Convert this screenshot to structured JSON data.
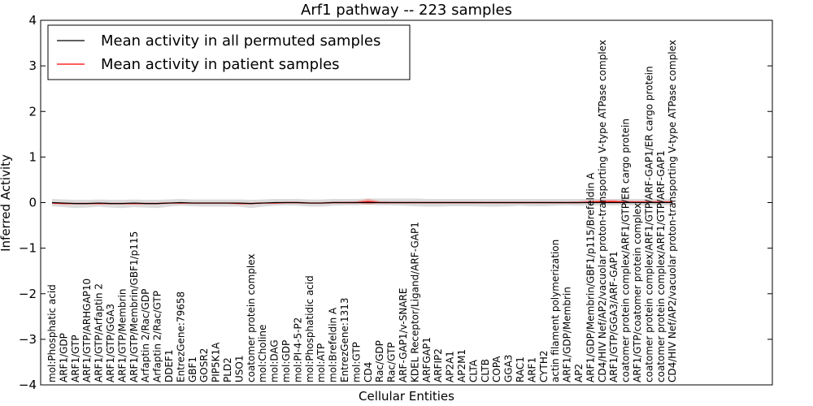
{
  "chart_data": {
    "type": "line",
    "title": "Arf1 pathway -- 223 samples",
    "xlabel": "Cellular Entities",
    "ylabel": "Inferred Activity",
    "ylim": [
      -4,
      4
    ],
    "yticks": [
      "−4",
      "−3",
      "−2",
      "−1",
      "0",
      "1",
      "2",
      "3",
      "4"
    ],
    "grid": false,
    "legend_position": "top-left",
    "categories": [
      "mol:Phosphatic acid",
      "ARF1/GDP",
      "ARF1/GTP",
      "ARF1/GTP/ARHGAP10",
      "ARF1/GTP/Arfaptin 2",
      "ARF1/GTP/GGA3",
      "ARF1/GTP/Membrin",
      "ARF1/GTP/Membrin/GBF1/p115",
      "Arfaptin 2/Rac/GDP",
      "Arfaptin 2/Rac/GTP",
      "DDEF1",
      "EntrezGene:79658",
      "GBF1",
      "GOSR2",
      "PIP5K1A",
      "PLD2",
      "USO1",
      "coatomer protein complex",
      "mol:Choline",
      "mol:DAG",
      "mol:GDP",
      "mol:PI-4-5-P2",
      "mol:Phosphatidic acid",
      "mol:ATP",
      "mol:Brefeldin A",
      "EntrezGene:1313",
      "mol:GTP",
      "CD4",
      "Rac/GDP",
      "Rac/GTP",
      "ARF-GAP1/v-SNARE",
      "KDEL Receptor/Ligand/ARF-GAP1",
      "ARFGAP1",
      "ARFIP2",
      "AP2A1",
      "AP2M1",
      "CLTA",
      "CLTB",
      "COPA",
      "GGA3",
      "RAC1",
      "ARF1",
      "CYTH2",
      "actin filament polymerization",
      "ARF1/GDP/Membrin",
      "AP2",
      "ARF1/GDP/Membrin/GBF1/p115/Brefeldin A",
      "CD4/HIV Nef/AP2/vacuolar proton-transporting V-type ATPase complex",
      "ARF1/GTP/GGA3/ARF-GAP1",
      "coatomer protein complex/ARF1/GTP/ER cargo protein",
      "ARF1/GTP/coatomer protein complex",
      "coatomer protein complex/ARF1/GTP/ARF-GAP1/ER cargo protein",
      "coatomer protein complex/ARF1/GTP/ARF-GAP1",
      "CD4/HIV Nef/AP2/vacuolar proton-transporting V-type ATPase complex"
    ],
    "series": [
      {
        "name": "Mean activity in all permuted samples",
        "color": "#000000",
        "values": [
          0.0,
          -0.01,
          -0.02,
          -0.02,
          -0.01,
          -0.02,
          -0.02,
          -0.01,
          -0.02,
          -0.02,
          -0.01,
          0.0,
          -0.01,
          -0.01,
          -0.01,
          -0.01,
          -0.01,
          -0.02,
          -0.01,
          0.0,
          0.0,
          0.0,
          -0.01,
          -0.01,
          0.0,
          0.0,
          0.0,
          0.0,
          0.0,
          0.0,
          0.0,
          0.0,
          0.0,
          0.0,
          0.0,
          0.0,
          0.0,
          0.0,
          0.0,
          0.0,
          0.0,
          0.0,
          0.0,
          0.0,
          0.0,
          0.0,
          0.0,
          0.0,
          0.0,
          0.0,
          0.0,
          0.0,
          0.0,
          0.0
        ],
        "band_low": [
          -0.08,
          -0.1,
          -0.12,
          -0.11,
          -0.09,
          -0.11,
          -0.12,
          -0.1,
          -0.11,
          -0.12,
          -0.09,
          -0.07,
          -0.08,
          -0.09,
          -0.09,
          -0.09,
          -0.09,
          -0.12,
          -0.09,
          -0.07,
          -0.06,
          -0.07,
          -0.09,
          -0.09,
          -0.07,
          -0.06,
          -0.06,
          -0.05,
          -0.06,
          -0.06,
          -0.07,
          -0.08,
          -0.09,
          -0.09,
          -0.08,
          -0.08,
          -0.08,
          -0.09,
          -0.09,
          -0.08,
          -0.07,
          -0.08,
          -0.08,
          -0.07,
          -0.06,
          -0.07,
          -0.07,
          -0.06,
          -0.06,
          -0.06,
          -0.06,
          -0.06,
          -0.06,
          -0.06
        ],
        "band_high": [
          0.08,
          0.07,
          0.06,
          0.06,
          0.07,
          0.06,
          0.06,
          0.07,
          0.06,
          0.06,
          0.07,
          0.08,
          0.07,
          0.07,
          0.07,
          0.07,
          0.07,
          0.06,
          0.07,
          0.08,
          0.08,
          0.08,
          0.07,
          0.07,
          0.08,
          0.08,
          0.08,
          0.09,
          0.09,
          0.09,
          0.09,
          0.09,
          0.08,
          0.08,
          0.08,
          0.08,
          0.08,
          0.08,
          0.08,
          0.08,
          0.08,
          0.08,
          0.08,
          0.08,
          0.08,
          0.08,
          0.08,
          0.08,
          0.08,
          0.08,
          0.08,
          0.08,
          0.08,
          0.08
        ]
      },
      {
        "name": "Mean activity in patient samples",
        "color": "#ff0000",
        "values": [
          -0.01,
          -0.02,
          -0.02,
          -0.02,
          -0.02,
          -0.02,
          -0.02,
          -0.02,
          -0.02,
          -0.02,
          -0.01,
          -0.01,
          -0.01,
          -0.01,
          -0.01,
          -0.01,
          -0.02,
          -0.02,
          -0.01,
          -0.01,
          0.0,
          0.0,
          -0.01,
          -0.01,
          0.0,
          0.0,
          0.0,
          0.02,
          0.0,
          0.0,
          0.0,
          0.0,
          0.0,
          0.0,
          0.0,
          0.0,
          0.0,
          0.0,
          0.0,
          0.0,
          0.0,
          0.0,
          0.0,
          0.0,
          0.0,
          0.0,
          0.01,
          0.02,
          0.02,
          0.01,
          0.01,
          0.01,
          0.01,
          0.01
        ],
        "band_low": [
          -0.03,
          -0.04,
          -0.04,
          -0.04,
          -0.04,
          -0.04,
          -0.04,
          -0.04,
          -0.04,
          -0.04,
          -0.03,
          -0.03,
          -0.03,
          -0.03,
          -0.03,
          -0.03,
          -0.04,
          -0.04,
          -0.03,
          -0.03,
          -0.02,
          -0.02,
          -0.03,
          -0.03,
          -0.02,
          -0.02,
          -0.02,
          -0.04,
          -0.02,
          -0.02,
          -0.02,
          -0.02,
          -0.02,
          -0.02,
          -0.02,
          -0.02,
          -0.02,
          -0.02,
          -0.02,
          -0.02,
          -0.02,
          -0.02,
          -0.02,
          -0.02,
          -0.02,
          -0.02,
          -0.01,
          -0.01,
          -0.01,
          -0.01,
          -0.01,
          -0.01,
          -0.01,
          -0.01
        ],
        "band_high": [
          0.01,
          0.0,
          0.0,
          0.0,
          0.0,
          0.0,
          0.0,
          0.0,
          0.0,
          0.0,
          0.01,
          0.01,
          0.01,
          0.01,
          0.01,
          0.01,
          0.0,
          0.0,
          0.01,
          0.01,
          0.02,
          0.02,
          0.01,
          0.01,
          0.02,
          0.02,
          0.03,
          0.08,
          0.03,
          0.02,
          0.02,
          0.02,
          0.02,
          0.02,
          0.02,
          0.02,
          0.02,
          0.02,
          0.02,
          0.02,
          0.02,
          0.02,
          0.02,
          0.02,
          0.02,
          0.03,
          0.05,
          0.06,
          0.06,
          0.05,
          0.04,
          0.04,
          0.04,
          0.04
        ]
      }
    ]
  }
}
